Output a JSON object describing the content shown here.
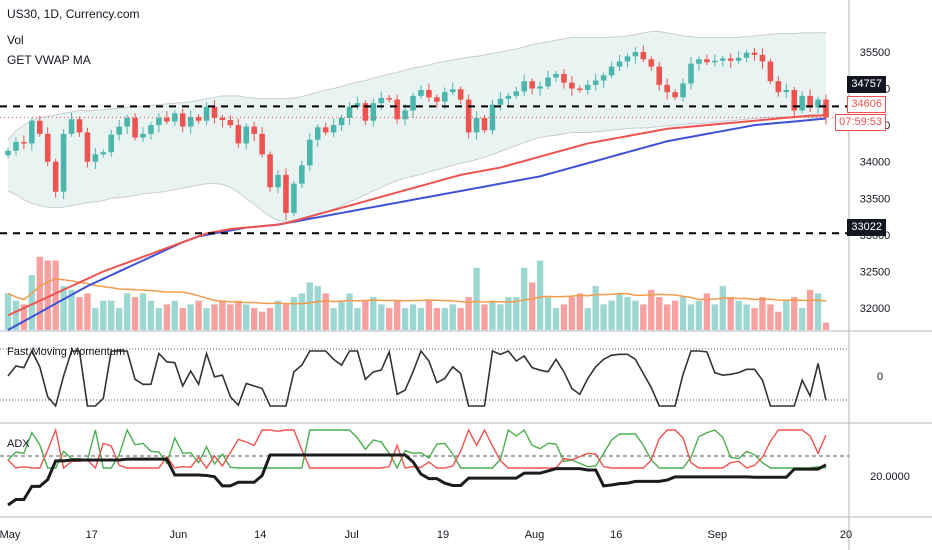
{
  "header": {
    "symbol_line": "US30, 1D, Currency.com",
    "indicator_1": "Vol",
    "indicator_2": "GET VWAP MA"
  },
  "panes": {
    "momentum_label": "Fast Moving Momentum",
    "adx_label": "ADX"
  },
  "price_tags": {
    "level_high": "34757",
    "level_low": "33022",
    "last_price": "34606",
    "countdown": "07:59:53"
  },
  "colors": {
    "up": "#4db6ac",
    "down": "#ef5350",
    "vwap_red": "#ef5350",
    "ma_blue": "#3f51d6",
    "vol_ma": "#f39a4b",
    "band_fill": "#e8f3f2",
    "band_line": "#c9ced3",
    "adx_black": "#1c1c1c",
    "di_plus": "#4caf50",
    "di_minus": "#ef5350",
    "momentum": "#333333"
  },
  "chart_data": [
    {
      "type": "candlestick",
      "title": "US30, 1D, Currency.com",
      "y_ticks": [
        32000,
        32500,
        33000,
        33500,
        34000,
        34500,
        35000,
        35500
      ],
      "x_ticks": [
        "May",
        "17",
        "Jun",
        "14",
        "Jul",
        "19",
        "Aug",
        "16",
        "Sep",
        "20"
      ],
      "ylim": [
        31700,
        35800
      ],
      "horizontal_levels": [
        34757,
        33022
      ],
      "last_price": 34606,
      "close": [
        34150,
        34270,
        34250,
        34560,
        34380,
        34000,
        33590,
        34380,
        34580,
        34400,
        34000,
        34100,
        34130,
        34370,
        34480,
        34600,
        34330,
        34380,
        34500,
        34600,
        34550,
        34660,
        34480,
        34610,
        34560,
        34750,
        34600,
        34570,
        34500,
        34250,
        34480,
        34380,
        34100,
        33650,
        33820,
        33300,
        33700,
        33950,
        34300,
        34470,
        34400,
        34500,
        34600,
        34750,
        34800,
        34560,
        34800,
        34870,
        34850,
        34580,
        34700,
        34900,
        34980,
        34880,
        34820,
        34950,
        34990,
        34850,
        34400,
        34600,
        34430,
        34780,
        34860,
        34900,
        34960,
        35100,
        35000,
        35030,
        35150,
        35200,
        35080,
        35000,
        34980,
        35050,
        35110,
        35180,
        35300,
        35370,
        35440,
        35500,
        35400,
        35300,
        35050,
        34950,
        34880,
        35070,
        35340,
        35400,
        35360,
        35380,
        35410,
        35380,
        35420,
        35490,
        35460,
        35370,
        35100,
        34950,
        34980,
        34700,
        34900,
        34740,
        34850,
        34606
      ],
      "bollinger_upper": [
        34300,
        34420,
        34500,
        34560,
        34600,
        34620,
        34640,
        34660,
        34680,
        34700,
        34700,
        34700,
        34710,
        34720,
        34730,
        34740,
        34750,
        34760,
        34770,
        34780,
        34790,
        34800,
        34810,
        34820,
        34840,
        34860,
        34880,
        34900,
        34900,
        34900,
        34880,
        34870,
        34860,
        34860,
        34860,
        34860,
        34870,
        34890,
        34920,
        34950,
        34980,
        35000,
        35030,
        35060,
        35090,
        35110,
        35140,
        35170,
        35200,
        35220,
        35250,
        35280,
        35300,
        35320,
        35350,
        35370,
        35390,
        35410,
        35430,
        35440,
        35460,
        35480,
        35500,
        35520,
        35540,
        35570,
        35600,
        35620,
        35640,
        35660,
        35680,
        35700,
        35700,
        35700,
        35700,
        35700,
        35700,
        35710,
        35720,
        35740,
        35760,
        35780,
        35780,
        35760,
        35740,
        35720,
        35710,
        35700,
        35700,
        35700,
        35700,
        35700,
        35700,
        35710,
        35720,
        35730,
        35740,
        35750,
        35750,
        35750,
        35760,
        35760,
        35760,
        35770
      ],
      "bollinger_lower": [
        33600,
        33550,
        33480,
        33430,
        33400,
        33380,
        33370,
        33380,
        33400,
        33420,
        33440,
        33450,
        33470,
        33500,
        33510,
        33520,
        33540,
        33560,
        33570,
        33580,
        33600,
        33620,
        33640,
        33660,
        33680,
        33700,
        33700,
        33690,
        33650,
        33580,
        33500,
        33420,
        33330,
        33250,
        33200,
        33180,
        33200,
        33230,
        33260,
        33290,
        33320,
        33350,
        33400,
        33450,
        33500,
        33550,
        33600,
        33650,
        33700,
        33740,
        33780,
        33800,
        33830,
        33860,
        33890,
        33920,
        33950,
        33980,
        34000,
        34030,
        34060,
        34100,
        34140,
        34180,
        34220,
        34260,
        34300,
        34330,
        34350,
        34360,
        34380,
        34400,
        34400,
        34400,
        34410,
        34420,
        34430,
        34440,
        34450,
        34460,
        34460,
        34470,
        34480,
        34490,
        34500,
        34510,
        34520,
        34520,
        34530,
        34540,
        34550,
        34560,
        34570,
        34580,
        34590,
        34600,
        34610,
        34610,
        34610,
        34610,
        34610,
        34600,
        34600,
        34600
      ],
      "vwap_line": [
        31900,
        31950,
        32000,
        32050,
        32100,
        32150,
        32200,
        32250,
        32300,
        32350,
        32400,
        32450,
        32500,
        32540,
        32580,
        32620,
        32660,
        32700,
        32740,
        32780,
        32820,
        32860,
        32900,
        32940,
        32980,
        33020,
        33040,
        33060,
        33080,
        33090,
        33100,
        33110,
        33120,
        33130,
        33140,
        33160,
        33190,
        33220,
        33250,
        33280,
        33310,
        33340,
        33370,
        33400,
        33430,
        33460,
        33490,
        33520,
        33550,
        33580,
        33610,
        33640,
        33670,
        33700,
        33730,
        33760,
        33790,
        33820,
        33840,
        33860,
        33880,
        33900,
        33920,
        33950,
        33980,
        34010,
        34040,
        34070,
        34100,
        34130,
        34160,
        34190,
        34220,
        34250,
        34270,
        34290,
        34310,
        34330,
        34350,
        34370,
        34390,
        34410,
        34430,
        34450,
        34460,
        34470,
        34480,
        34490,
        34500,
        34510,
        34520,
        34530,
        34540,
        34550,
        34560,
        34570,
        34580,
        34590,
        34600,
        34610,
        34620,
        34630,
        34630,
        34640
      ],
      "ma_blue": [
        31700,
        31760,
        31820,
        31880,
        31940,
        32000,
        32060,
        32120,
        32180,
        32240,
        32300,
        32350,
        32400,
        32450,
        32500,
        32550,
        32600,
        32650,
        32700,
        32750,
        32800,
        32850,
        32900,
        32940,
        32980,
        33000,
        33020,
        33040,
        33060,
        33080,
        33100,
        33110,
        33120,
        33130,
        33140,
        33160,
        33180,
        33200,
        33220,
        33240,
        33260,
        33280,
        33300,
        33320,
        33340,
        33360,
        33380,
        33400,
        33420,
        33440,
        33460,
        33480,
        33500,
        33520,
        33540,
        33560,
        33580,
        33600,
        33620,
        33640,
        33660,
        33680,
        33700,
        33720,
        33740,
        33760,
        33780,
        33800,
        33830,
        33860,
        33890,
        33920,
        33950,
        33980,
        34010,
        34040,
        34070,
        34100,
        34130,
        34160,
        34190,
        34220,
        34250,
        34280,
        34300,
        34320,
        34340,
        34360,
        34380,
        34400,
        34420,
        34440,
        34460,
        34480,
        34500,
        34510,
        34520,
        34530,
        34540,
        34550,
        34560,
        34570,
        34580,
        34590
      ]
    },
    {
      "type": "bar",
      "series": [
        {
          "values": [
            32200,
            32100,
            32050,
            32450,
            32700,
            32650,
            32650,
            32300,
            32250,
            32150,
            32200,
            32000,
            32100,
            32100,
            32000,
            32200,
            32150,
            32200,
            32100,
            32000,
            32050,
            32100,
            32000,
            32050,
            32100,
            32000,
            32050,
            32100,
            32050,
            32100,
            32050,
            32000,
            31950,
            32000,
            32100,
            32050,
            32150,
            32200,
            32350,
            32300,
            32200,
            32000,
            32100,
            32200,
            32000,
            32100,
            32150,
            32050,
            32000,
            32100,
            32000,
            32050,
            32000,
            32100,
            32000,
            32000,
            32050,
            32000,
            32150,
            32550,
            32050,
            32100,
            32050,
            32150,
            32150,
            32550,
            32350,
            32650,
            32150,
            32000,
            32050,
            32150,
            32200,
            32000,
            32300,
            32050,
            32100,
            32200,
            32150,
            32100,
            32050,
            32250,
            32150,
            32050,
            32100,
            32150,
            32050,
            32100,
            32200,
            32050,
            32300,
            32150,
            32100,
            32050,
            32000,
            32150,
            32050,
            31950,
            32100,
            32150,
            32000,
            32250,
            32200,
            31800
          ]
        }
      ]
    },
    {
      "type": "line",
      "title": "Fast Moving Momentum",
      "y_ticks": [
        0
      ]
    },
    {
      "type": "line",
      "title": "ADX",
      "y_ticks": [
        20.0
      ]
    }
  ]
}
